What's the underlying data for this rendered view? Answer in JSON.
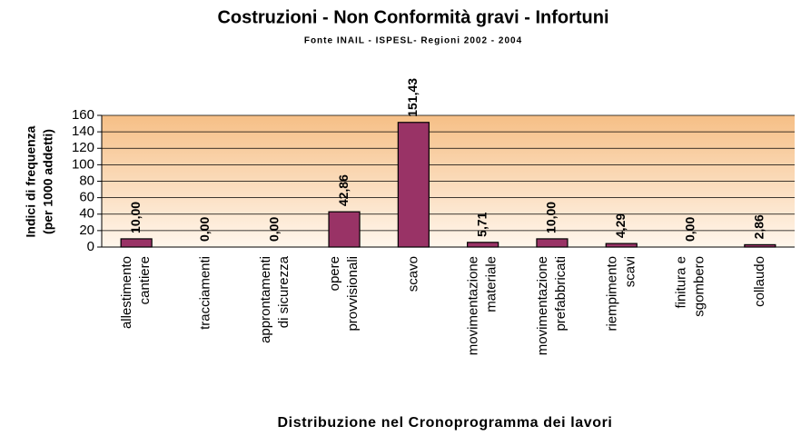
{
  "chart_data": {
    "type": "bar",
    "title": "Costruzioni -  Non Conformità gravi - Infortuni",
    "subtitle": "Fonte INAIL - ISPESL- Regioni  2002 - 2004",
    "xlabel": "Distribuzione nel Cronoprogramma dei lavori",
    "ylabel": "Indici di frequenza\n(per 1000 addetti)",
    "categories": [
      "allestimento\ncantiere",
      "tracciamenti",
      "approntamenti\ndi sicurezza",
      "opere\nprovvisionali",
      "scavo",
      "movimentazione\nmateriale",
      "movimentazione\nprefabbricati",
      "riempimento\nscavi",
      "finitura e\nsgombero",
      "collaudo"
    ],
    "values": [
      10,
      0,
      0,
      42.86,
      151.43,
      5.71,
      10,
      4.29,
      0,
      2.86
    ],
    "value_labels": [
      "10,00",
      "0,00",
      "0,00",
      "42,86",
      "151,43",
      "5,71",
      "10,00",
      "4,29",
      "0,00",
      "2,86"
    ],
    "color": "#993366",
    "ylim": [
      0,
      160
    ],
    "yticks": [
      0,
      20,
      40,
      60,
      80,
      100,
      120,
      140,
      160
    ],
    "grid": true
  }
}
